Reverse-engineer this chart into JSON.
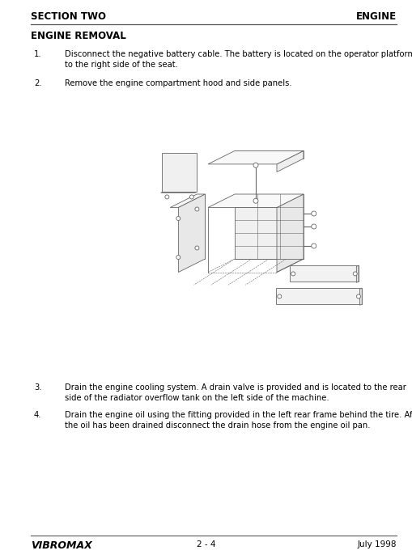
{
  "bg_color": "#ffffff",
  "header_left": "SECTION TWO",
  "header_right": "ENGINE",
  "section_title": "ENGINE REMOVAL",
  "items": [
    {
      "num": "1.",
      "text": "Disconnect the negative battery cable. The battery is located on the operator platform\nto the right side of the seat."
    },
    {
      "num": "2.",
      "text": "Remove the engine compartment hood and side panels."
    },
    {
      "num": "3.",
      "text": "Drain the engine cooling system. A drain valve is provided and is located to the rear\nside of the radiator overflow tank on the left side of the machine."
    },
    {
      "num": "4.",
      "text": "Drain the engine oil using the fitting provided in the left rear frame behind the tire. After\nthe oil has been drained disconnect the drain hose from the engine oil pan."
    }
  ],
  "footer_left": "VIBROMAX",
  "footer_center": "2 - 4",
  "footer_right": "July 1998",
  "text_color": "#000000",
  "diag_color": "#888888",
  "header_font_size": 8.5,
  "section_title_font_size": 8.5,
  "body_font_size": 7.2,
  "footer_font_size": 7.5
}
